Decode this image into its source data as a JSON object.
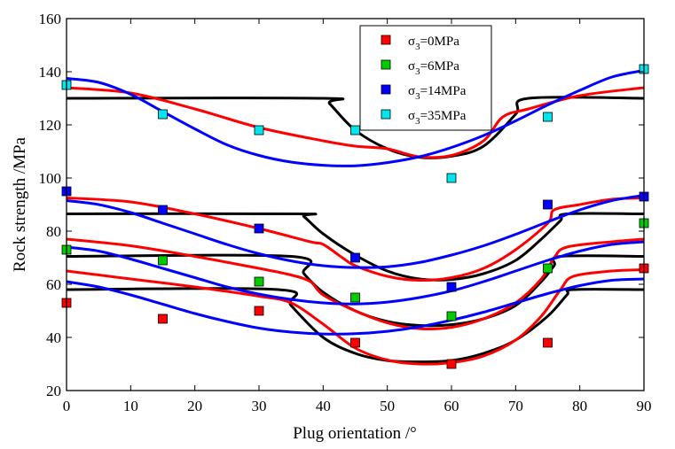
{
  "chart_data": {
    "type": "scatter",
    "xlabel": "Plug orientation /°",
    "ylabel": "Rock strength /MPa",
    "xlim": [
      0,
      90
    ],
    "ylim": [
      20,
      160
    ],
    "xticks": [
      0,
      10,
      20,
      30,
      40,
      50,
      60,
      70,
      80,
      90
    ],
    "yticks": [
      20,
      40,
      60,
      80,
      100,
      120,
      140,
      160
    ],
    "grid": false,
    "legend_position": "top-right",
    "series": [
      {
        "name": "σ3=0MPa",
        "label_prefix": "σ",
        "label_sub": "3",
        "label_suffix": "=0MPa",
        "color": "#ff0000",
        "points": [
          [
            0,
            53
          ],
          [
            15,
            47
          ],
          [
            30,
            50
          ],
          [
            45,
            38
          ],
          [
            60,
            30
          ],
          [
            75,
            38
          ],
          [
            90,
            66
          ]
        ],
        "fit_red": [
          [
            0,
            65
          ],
          [
            10,
            62
          ],
          [
            20,
            59
          ],
          [
            30,
            55.5
          ],
          [
            35,
            53
          ],
          [
            40,
            45
          ],
          [
            45,
            36
          ],
          [
            50,
            31.5
          ],
          [
            55,
            30
          ],
          [
            60,
            30.5
          ],
          [
            65,
            33
          ],
          [
            70,
            39
          ],
          [
            74,
            48
          ],
          [
            77,
            58
          ],
          [
            79,
            63
          ],
          [
            85,
            65
          ],
          [
            90,
            65.5
          ]
        ],
        "fit_blue": [
          [
            0,
            61
          ],
          [
            5,
            59
          ],
          [
            10,
            56
          ],
          [
            15,
            52.5
          ],
          [
            20,
            49
          ],
          [
            25,
            46
          ],
          [
            30,
            43.5
          ],
          [
            35,
            42
          ],
          [
            40,
            41.3
          ],
          [
            45,
            41.4
          ],
          [
            50,
            42.3
          ],
          [
            55,
            44
          ],
          [
            60,
            46.5
          ],
          [
            65,
            49.5
          ],
          [
            70,
            53
          ],
          [
            75,
            56.5
          ],
          [
            80,
            59.5
          ],
          [
            85,
            61.5
          ],
          [
            90,
            62
          ]
        ],
        "fit_black": [
          [
            0,
            58
          ],
          [
            33,
            58
          ],
          [
            35,
            52
          ],
          [
            40,
            40
          ],
          [
            45,
            34
          ],
          [
            50,
            31.3
          ],
          [
            55,
            30.8
          ],
          [
            60,
            31.3
          ],
          [
            65,
            34
          ],
          [
            70,
            39
          ],
          [
            75,
            48
          ],
          [
            78,
            56
          ],
          [
            79,
            58
          ],
          [
            90,
            58
          ]
        ]
      },
      {
        "name": "σ3=6MPa",
        "label_prefix": "σ",
        "label_sub": "3",
        "label_suffix": "=6MPa",
        "color": "#00cc00",
        "points": [
          [
            0,
            73
          ],
          [
            15,
            69
          ],
          [
            30,
            61
          ],
          [
            45,
            55
          ],
          [
            60,
            48
          ],
          [
            75,
            66
          ],
          [
            90,
            83
          ]
        ],
        "fit_red": [
          [
            0,
            77
          ],
          [
            10,
            74.5
          ],
          [
            20,
            70.5
          ],
          [
            30,
            66
          ],
          [
            35,
            63.5
          ],
          [
            38,
            61
          ],
          [
            40,
            56
          ],
          [
            45,
            50
          ],
          [
            50,
            45.5
          ],
          [
            55,
            43.3
          ],
          [
            60,
            43.8
          ],
          [
            65,
            47
          ],
          [
            70,
            53
          ],
          [
            74,
            62
          ],
          [
            76,
            70
          ],
          [
            78,
            74
          ],
          [
            85,
            76
          ],
          [
            90,
            77
          ]
        ],
        "fit_blue": [
          [
            0,
            74
          ],
          [
            5,
            72.5
          ],
          [
            10,
            69.5
          ],
          [
            15,
            66
          ],
          [
            20,
            62.5
          ],
          [
            25,
            59
          ],
          [
            30,
            56.3
          ],
          [
            35,
            54.3
          ],
          [
            40,
            53
          ],
          [
            45,
            52.6
          ],
          [
            50,
            53.3
          ],
          [
            55,
            55
          ],
          [
            60,
            57.5
          ],
          [
            65,
            61
          ],
          [
            70,
            65
          ],
          [
            75,
            69
          ],
          [
            80,
            72.5
          ],
          [
            85,
            75
          ],
          [
            90,
            76
          ]
        ],
        "fit_black": [
          [
            0,
            70.5
          ],
          [
            35,
            70.5
          ],
          [
            37,
            64
          ],
          [
            40,
            57
          ],
          [
            45,
            50
          ],
          [
            50,
            46
          ],
          [
            55,
            44.5
          ],
          [
            60,
            44.8
          ],
          [
            65,
            47
          ],
          [
            70,
            52
          ],
          [
            74,
            61
          ],
          [
            76,
            67
          ],
          [
            77,
            70.5
          ],
          [
            90,
            70.5
          ]
        ]
      },
      {
        "name": "σ3=14MPa",
        "label_prefix": "σ",
        "label_sub": "3",
        "label_suffix": "=14MPa",
        "color": "#0000ff",
        "points": [
          [
            0,
            95
          ],
          [
            15,
            88
          ],
          [
            30,
            81
          ],
          [
            45,
            70
          ],
          [
            60,
            59
          ],
          [
            75,
            90
          ],
          [
            90,
            93
          ]
        ],
        "fit_red": [
          [
            0,
            92.5
          ],
          [
            10,
            91
          ],
          [
            20,
            86.5
          ],
          [
            30,
            81
          ],
          [
            38,
            76
          ],
          [
            40,
            75
          ],
          [
            43,
            70
          ],
          [
            45,
            67
          ],
          [
            50,
            63
          ],
          [
            55,
            61.5
          ],
          [
            60,
            62.5
          ],
          [
            65,
            66
          ],
          [
            70,
            73
          ],
          [
            75,
            83
          ],
          [
            76,
            88
          ],
          [
            80,
            90
          ],
          [
            85,
            92
          ],
          [
            90,
            92.5
          ]
        ],
        "fit_blue": [
          [
            0,
            91.5
          ],
          [
            5,
            90
          ],
          [
            10,
            87
          ],
          [
            15,
            83
          ],
          [
            20,
            79
          ],
          [
            25,
            75
          ],
          [
            30,
            71.5
          ],
          [
            35,
            68.8
          ],
          [
            40,
            67
          ],
          [
            45,
            66.3
          ],
          [
            50,
            66.6
          ],
          [
            55,
            68.2
          ],
          [
            60,
            71
          ],
          [
            65,
            74.5
          ],
          [
            70,
            78.8
          ],
          [
            75,
            83.5
          ],
          [
            80,
            88
          ],
          [
            85,
            91.5
          ],
          [
            90,
            93.5
          ]
        ],
        "fit_black": [
          [
            0,
            86.5
          ],
          [
            36,
            86.5
          ],
          [
            37,
            85.5
          ],
          [
            40,
            79
          ],
          [
            45,
            71
          ],
          [
            50,
            65
          ],
          [
            55,
            62
          ],
          [
            60,
            61.8
          ],
          [
            65,
            64
          ],
          [
            70,
            69
          ],
          [
            74,
            77
          ],
          [
            77,
            84
          ],
          [
            78,
            86.5
          ],
          [
            90,
            86.5
          ]
        ]
      },
      {
        "name": "σ3=35MPa",
        "label_prefix": "σ",
        "label_sub": "3",
        "label_suffix": "=35MPa",
        "color": "#00e5ee",
        "points": [
          [
            0,
            135
          ],
          [
            15,
            124
          ],
          [
            30,
            118
          ],
          [
            45,
            118
          ],
          [
            60,
            100
          ],
          [
            75,
            123
          ],
          [
            90,
            141
          ]
        ],
        "fit_red": [
          [
            0,
            134
          ],
          [
            10,
            132
          ],
          [
            20,
            126
          ],
          [
            30,
            119
          ],
          [
            40,
            114
          ],
          [
            45,
            112
          ],
          [
            50,
            111
          ],
          [
            55,
            108
          ],
          [
            60,
            108.5
          ],
          [
            65,
            114
          ],
          [
            68,
            123
          ],
          [
            72,
            126
          ],
          [
            80,
            131
          ],
          [
            90,
            134
          ]
        ],
        "fit_blue": [
          [
            0,
            137.5
          ],
          [
            5,
            136
          ],
          [
            10,
            131.5
          ],
          [
            15,
            125
          ],
          [
            20,
            118.5
          ],
          [
            25,
            112.5
          ],
          [
            30,
            108.5
          ],
          [
            35,
            106
          ],
          [
            40,
            104.8
          ],
          [
            45,
            104.6
          ],
          [
            50,
            105.8
          ],
          [
            55,
            108
          ],
          [
            60,
            111.5
          ],
          [
            65,
            116
          ],
          [
            70,
            121.5
          ],
          [
            75,
            127.5
          ],
          [
            80,
            133
          ],
          [
            85,
            138
          ],
          [
            90,
            140.5
          ]
        ],
        "fit_black": [
          [
            0,
            130
          ],
          [
            40,
            130
          ],
          [
            41,
            128
          ],
          [
            45,
            118
          ],
          [
            50,
            111
          ],
          [
            55,
            107.8
          ],
          [
            60,
            108.2
          ],
          [
            65,
            112
          ],
          [
            70,
            124
          ],
          [
            72,
            130
          ],
          [
            90,
            130
          ]
        ]
      }
    ]
  }
}
